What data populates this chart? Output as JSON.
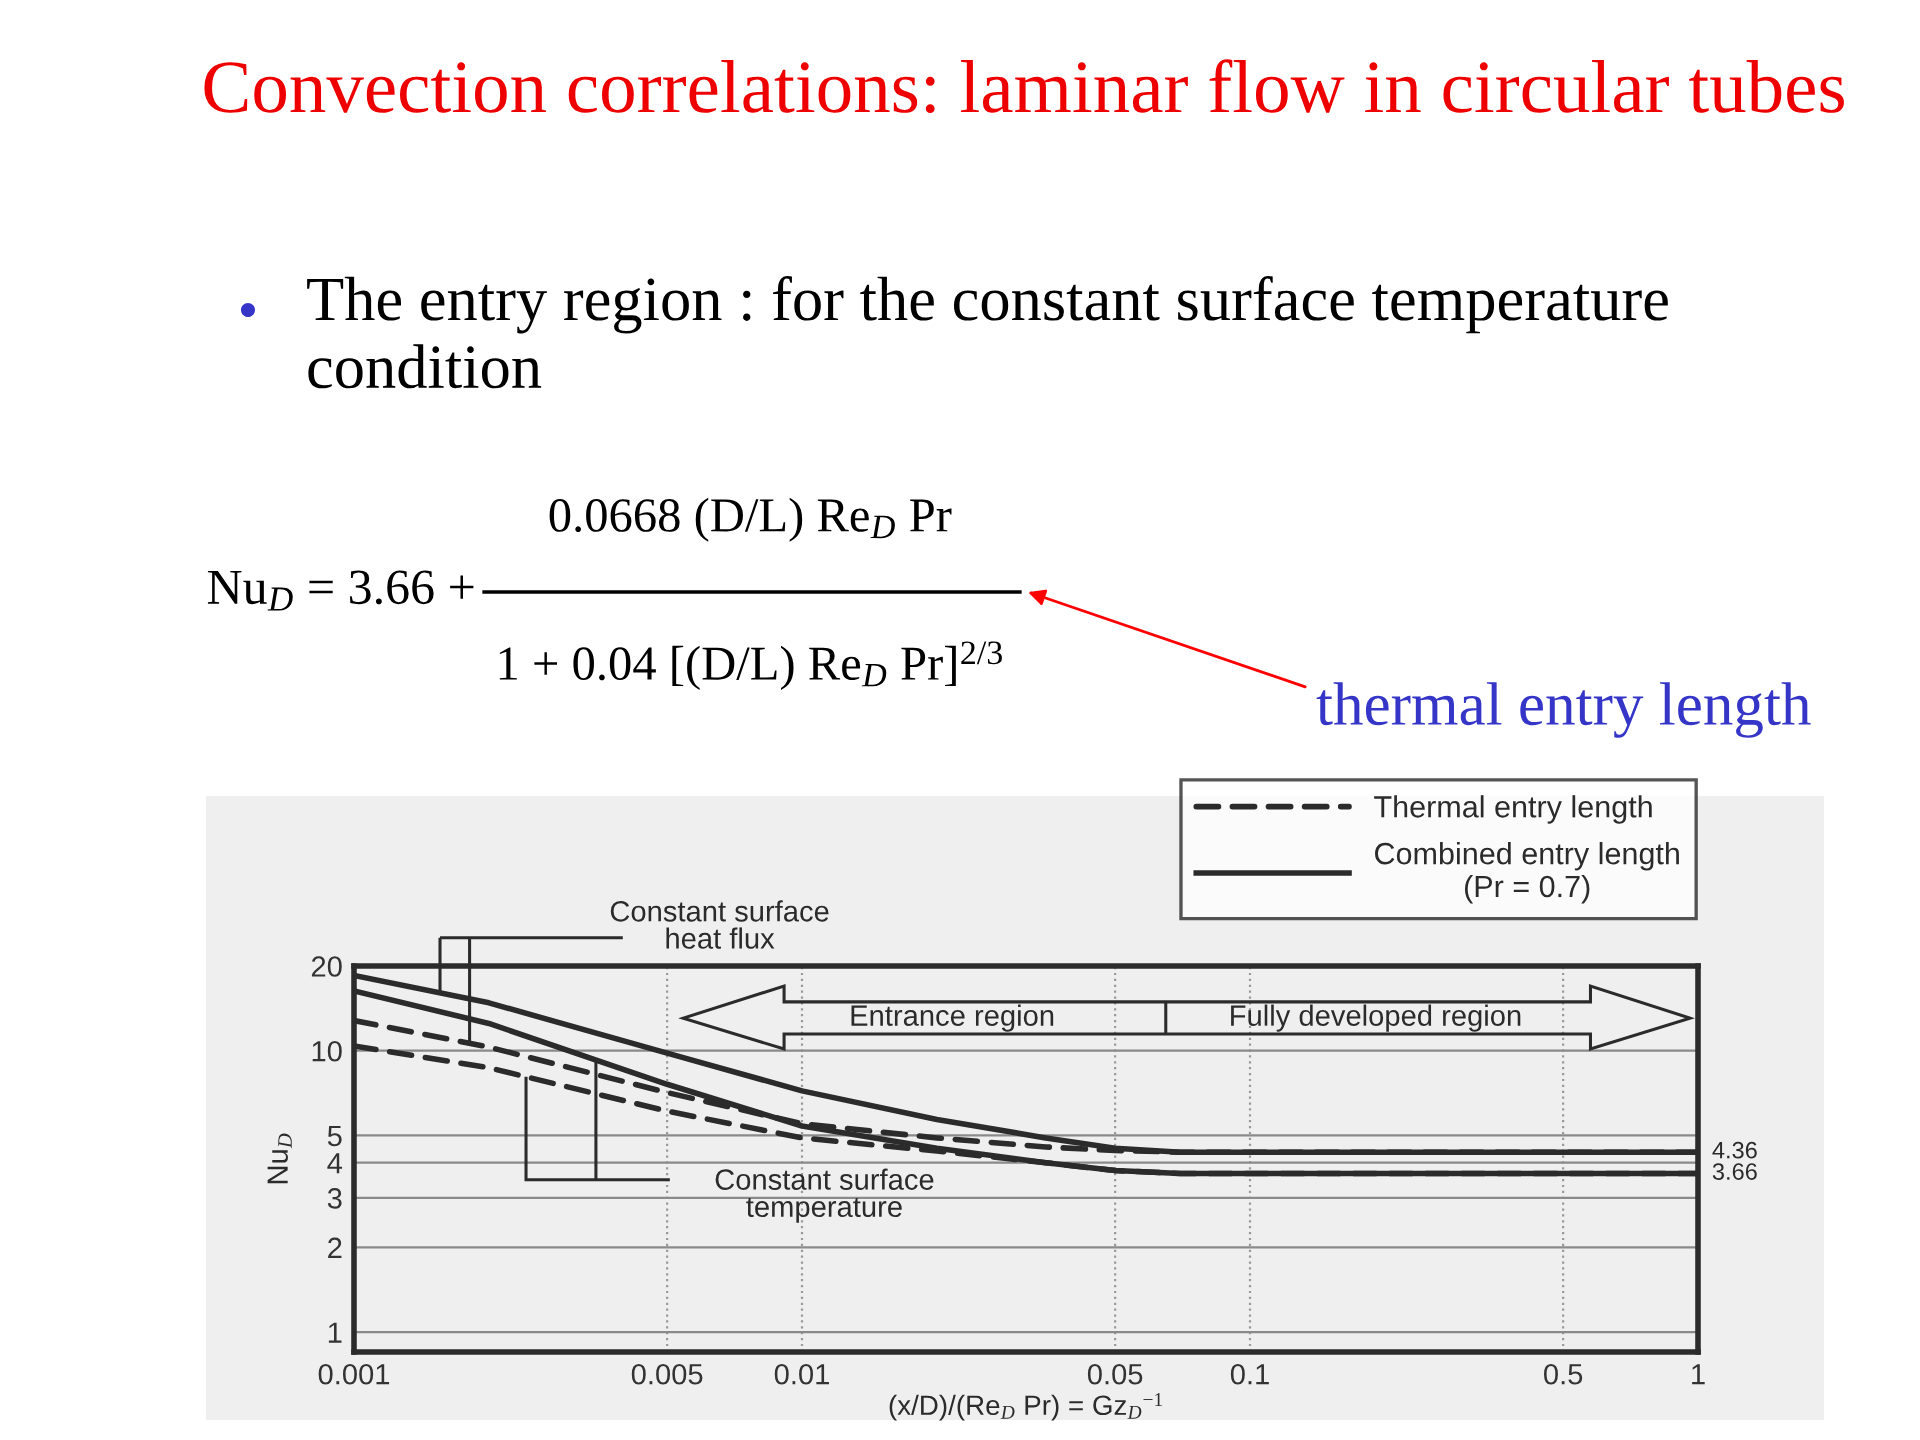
{
  "chart_data": {
    "type": "line",
    "title": "Convection correlations: laminar flow in circular tubes",
    "subtitle": "The entry region : for the constant surface temperature condition",
    "xlabel": "(x/D)/(Re$_{D}$ Pr) = Gz$_{D}$$^{−1}$",
    "ylabel": "Nu$_{D}$",
    "log": "xy",
    "xlim": [
      0.001,
      1
    ],
    "ylim": [
      0.85,
      20
    ],
    "xticks": [
      0.001,
      0.005,
      0.01,
      0.05,
      0.1,
      0.5,
      1
    ],
    "yticks": [
      1,
      2,
      3,
      4,
      5,
      10,
      20
    ],
    "grid": true,
    "legend": "top right",
    "marker": "none",
    "series": [
      {
        "name": "Thermal entry length",
        "color": "#2b2b2b",
        "line_style": "dashed",
        "x": [
          0.001,
          0.002,
          0.005,
          0.01,
          0.02,
          0.035,
          0.05,
          0.07,
          1
        ],
        "values": [
          12.8,
          10.3,
          7.1,
          5.5,
          4.9,
          4.55,
          4.42,
          4.36,
          4.36
        ]
      },
      {
        "name": "Combined entry length\n(Pr = 0.7)",
        "color": "#2b2b2b",
        "line_style": "solid",
        "x": [
          0.001,
          0.002,
          0.005,
          0.01,
          0.02,
          0.035,
          0.05,
          0.07,
          1
        ],
        "values": [
          18.5,
          14.8,
          9.8,
          7.2,
          5.7,
          4.9,
          4.5,
          4.36,
          4.36
        ]
      },
      {
        "color": "#2b2b2b",
        "line_style": "dashed",
        "x": [
          0.001,
          0.002,
          0.005,
          0.01,
          0.02,
          0.035,
          0.05,
          0.07,
          1
        ],
        "values": [
          10.4,
          8.7,
          6.1,
          4.9,
          4.4,
          4.0,
          3.75,
          3.66,
          3.66
        ]
      },
      {
        "color": "#2b2b2b",
        "line_style": "solid",
        "x": [
          0.001,
          0.002,
          0.005,
          0.01,
          0.02,
          0.035,
          0.05,
          0.07,
          1
        ],
        "values": [
          16.3,
          12.5,
          7.6,
          5.4,
          4.5,
          4.0,
          3.75,
          3.66,
          3.66
        ]
      }
    ],
    "annotations": [
      "Nu$_{D}$ = 3.66 +",
      "0.0668 (D/L) Re$_{D}$ Pr",
      "1 + 0.04 [(D/L) Re$_{D}$ Pr]$^{2/3}$",
      "thermal entry length",
      "Constant surface\nheat flux",
      "Constant surface\ntemperature",
      "Entrance region",
      "Fully developed region",
      {
        "text": "4.36",
        "x": 1,
        "y": 4.36
      },
      {
        "text": "3.66",
        "x": 1,
        "y": 3.66
      }
    ]
  }
}
